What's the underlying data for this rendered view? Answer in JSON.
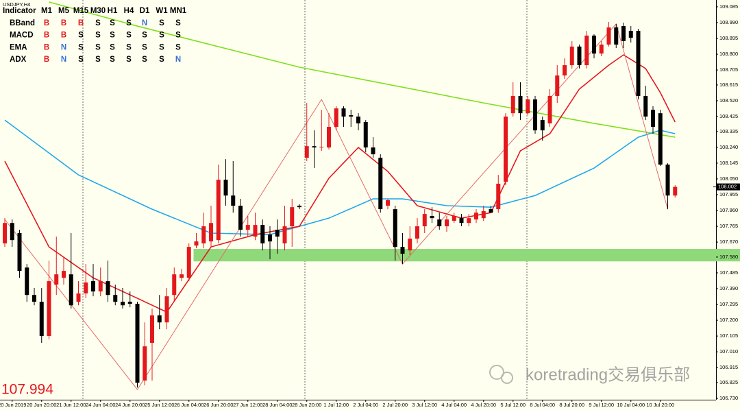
{
  "chart_data": {
    "type": "candlestick",
    "title": "USDJPY,H4",
    "categories": [
      null,
      "20 Jun 2019",
      null,
      null,
      null,
      "20 Jun 20:00",
      null,
      null,
      null,
      "21 Jun 12:00",
      null,
      null,
      null,
      "24 Jun 04:00",
      null,
      null,
      null,
      "24 Jun 20:00",
      null,
      null,
      null,
      "25 Jun 12:00",
      null,
      null,
      null,
      "26 Jun 04:00",
      null,
      null,
      null,
      "26 Jun 20:00",
      null,
      null,
      null,
      "27 Jun 12:00",
      null,
      null,
      null,
      "28 Jun 04:00",
      null,
      null,
      null,
      "28 Jun 20:00",
      null,
      null,
      null,
      "1 Jul 12:00",
      null,
      null,
      null,
      "2 Jul 04:00",
      null,
      null,
      null,
      "2 Jul 20:00",
      null,
      null,
      null,
      "3 Jul 12:00",
      null,
      null,
      null,
      "4 Jul 04:00",
      null,
      null,
      null,
      "4 Jul 20:00",
      null,
      null,
      null,
      "5 Jul 12:00",
      null,
      null,
      null,
      "8 Jul 04:00",
      null,
      null,
      null,
      "8 Jul 20:00",
      null,
      null,
      null,
      "9 Jul 12:00",
      null,
      null,
      null,
      "10 Jul 04:00",
      null,
      null,
      null,
      "10 Jul 20:00",
      null,
      null
    ],
    "open": [
      107.662,
      107.785,
      107.724,
      107.517,
      107.352,
      107.311,
      107.105,
      107.414,
      107.455,
      107.476,
      107.311,
      107.361,
      107.435,
      107.373,
      107.435,
      107.352,
      107.311,
      107.311,
      107.299,
      106.837,
      107.064,
      107.229,
      107.187,
      107.352,
      107.455,
      107.455,
      107.649,
      107.662,
      107.674,
      107.682,
      108.045,
      107.95,
      107.889,
      107.744,
      107.703,
      107.773,
      107.715,
      107.744,
      107.662,
      107.765,
      107.889,
      108.177,
      108.247,
      108.243,
      108.239,
      108.363,
      108.474,
      108.433,
      108.425,
      108.392,
      108.239,
      108.177,
      107.889,
      107.868,
      107.641,
      107.62,
      107.691,
      107.765,
      107.827,
      107.806,
      107.765,
      107.798,
      107.814,
      107.785,
      107.806,
      107.814,
      107.868,
      107.868,
      108.033,
      108.445,
      108.549,
      108.445,
      108.528,
      108.404,
      108.384,
      108.549,
      108.672,
      108.734,
      108.846,
      108.734,
      108.912,
      108.804,
      108.858,
      108.961,
      108.969,
      108.94,
      108.94,
      108.549,
      108.466,
      108.445,
      108.136,
      107.95
    ],
    "high": [
      107.814,
      107.806,
      107.744,
      107.538,
      107.394,
      107.394,
      107.559,
      107.703,
      107.579,
      107.724,
      107.435,
      107.538,
      107.538,
      107.517,
      107.559,
      107.414,
      107.394,
      107.373,
      107.311,
      107.187,
      107.27,
      107.352,
      107.394,
      107.517,
      107.509,
      107.662,
      107.724,
      107.847,
      107.889,
      108.136,
      108.169,
      108.157,
      107.93,
      107.827,
      107.847,
      107.806,
      107.765,
      107.806,
      107.889,
      107.93,
      107.897,
      108.507,
      108.342,
      108.466,
      108.445,
      108.487,
      108.487,
      108.466,
      108.445,
      108.404,
      108.301,
      108.198,
      107.93,
      107.889,
      107.724,
      107.765,
      107.814,
      107.868,
      107.88,
      107.847,
      107.827,
      107.847,
      107.839,
      107.839,
      107.868,
      107.889,
      107.889,
      108.074,
      108.445,
      108.631,
      108.631,
      108.549,
      108.549,
      108.425,
      108.59,
      108.734,
      108.775,
      108.879,
      108.858,
      108.94,
      108.92,
      108.879,
      108.994,
      108.982,
      108.99,
      108.969,
      108.953,
      108.61,
      108.487,
      108.466,
      108.144,
      108.012
    ],
    "low": [
      107.641,
      107.641,
      107.455,
      107.311,
      107.29,
      107.064,
      107.084,
      107.352,
      107.414,
      107.27,
      107.29,
      107.332,
      107.344,
      107.344,
      107.311,
      107.29,
      107.27,
      107.278,
      106.795,
      106.808,
      106.837,
      107.146,
      107.146,
      107.311,
      107.435,
      107.435,
      107.633,
      107.633,
      107.641,
      107.662,
      107.889,
      107.847,
      107.703,
      107.703,
      107.682,
      107.62,
      107.567,
      107.6,
      107.62,
      107.641,
      107.868,
      108.157,
      108.115,
      108.219,
      108.227,
      108.342,
      108.363,
      108.363,
      108.342,
      108.21,
      108.177,
      107.847,
      107.868,
      107.559,
      107.538,
      107.592,
      107.662,
      107.724,
      107.785,
      107.744,
      107.732,
      107.785,
      107.765,
      107.765,
      107.785,
      107.798,
      107.847,
      107.847,
      108.012,
      108.425,
      108.404,
      108.433,
      108.322,
      108.28,
      108.363,
      108.507,
      108.652,
      108.714,
      108.714,
      108.714,
      108.775,
      108.788,
      108.846,
      108.837,
      108.837,
      108.87,
      108.528,
      108.404,
      108.322,
      108.128,
      107.868,
      107.938
    ],
    "close": [
      107.785,
      107.682,
      107.497,
      107.352,
      107.311,
      107.105,
      107.435,
      107.476,
      107.497,
      107.29,
      107.361,
      107.427,
      107.373,
      107.435,
      107.352,
      107.311,
      107.29,
      107.299,
      106.824,
      107.043,
      107.229,
      107.187,
      107.344,
      107.476,
      107.476,
      107.641,
      107.674,
      107.765,
      107.785,
      108.045,
      107.95,
      107.889,
      107.744,
      107.773,
      107.773,
      107.662,
      107.674,
      107.703,
      107.765,
      107.88,
      107.88,
      108.247,
      108.239,
      108.243,
      108.363,
      108.474,
      108.425,
      108.425,
      108.384,
      108.239,
      108.198,
      107.868,
      107.922,
      107.641,
      107.6,
      107.691,
      107.765,
      107.839,
      107.814,
      107.765,
      107.806,
      107.827,
      107.785,
      107.814,
      107.847,
      107.856,
      107.847,
      108.021,
      108.425,
      108.549,
      108.445,
      108.528,
      108.342,
      108.342,
      108.549,
      108.672,
      108.734,
      108.846,
      108.734,
      108.912,
      108.804,
      108.858,
      108.961,
      108.858,
      108.879,
      108.899,
      108.549,
      108.425,
      108.363,
      108.136,
      107.95,
      108.002
    ],
    "up_color": "#e4181c",
    "down_color": "#000000",
    "overlays": [
      {
        "color": "#7ee01a",
        "x": [
          6,
          18,
          40,
          65,
          80,
          91
        ],
        "values": [
          109.114,
          108.969,
          108.722,
          108.507,
          108.384,
          108.301
        ]
      },
      {
        "color": "#1ea8ec",
        "x": [
          0,
          10,
          20,
          28,
          36,
          44,
          50,
          54,
          60,
          66,
          72,
          80,
          86,
          89,
          91
        ],
        "values": [
          108.404,
          108.074,
          107.868,
          107.724,
          107.715,
          107.814,
          107.93,
          107.93,
          107.889,
          107.88,
          107.95,
          108.115,
          108.301,
          108.342,
          108.322
        ]
      },
      {
        "color": "#e4181c",
        "x": [
          0,
          6,
          12,
          18,
          22,
          28,
          34,
          40,
          44,
          48,
          52,
          56,
          62,
          66,
          70,
          74,
          78,
          82,
          84,
          87,
          89,
          91
        ],
        "values": [
          108.157,
          107.641,
          107.455,
          107.332,
          107.249,
          107.641,
          107.715,
          107.765,
          108.054,
          108.239,
          108.095,
          107.889,
          107.814,
          107.847,
          108.219,
          108.322,
          108.59,
          108.734,
          108.796,
          108.714,
          108.569,
          108.392
        ]
      },
      {
        "color": "#e46a6a",
        "x": [
          0,
          18,
          43,
          54,
          83,
          90
        ],
        "values": [
          107.806,
          106.783,
          108.528,
          107.538,
          108.982,
          107.868
        ],
        "thin": true
      }
    ],
    "zone": {
      "start": 26,
      "low": 107.554,
      "high": 107.629,
      "color": "#8fd97a"
    },
    "ylim": [
      106.722,
      109.126
    ],
    "yticks": [
      109.085,
      {
        "value": 108.99,
        "label": "108.990"
      },
      108.895,
      {
        "value": 108.8,
        "label": "108.800"
      },
      108.705,
      108.615,
      {
        "value": 108.52,
        "label": "108.520"
      },
      108.425,
      108.335,
      {
        "value": 108.24,
        "label": "108.240"
      },
      108.145,
      {
        "value": 108.05,
        "label": "108.050"
      },
      107.955,
      {
        "value": 107.86,
        "label": "107.860"
      },
      107.765,
      {
        "value": 107.67,
        "label": "107.670"
      },
      {
        "value": 107.58,
        "label": "107.580"
      },
      107.485,
      {
        "value": 107.39,
        "label": "107.390"
      },
      107.295,
      {
        "value": 107.2,
        "label": "107.200"
      },
      107.105,
      {
        "value": 107.01,
        "label": "107.010"
      },
      106.915,
      106.825,
      {
        "value": 106.73,
        "label": "106.730"
      }
    ],
    "current_price": 108.002,
    "indicator_value": 107.994
  },
  "signal_table": {
    "header": [
      "Indicator",
      "M1",
      "M5",
      "M15",
      "M30",
      "H1",
      "H4",
      "D1",
      "W1",
      "MN1"
    ],
    "rows": [
      [
        "BBand",
        "B",
        "B",
        "B",
        "S",
        "S",
        "S",
        "N",
        "S",
        "S"
      ],
      [
        "MACD",
        "B",
        "B",
        "S",
        "S",
        "S",
        "S",
        "S",
        "S",
        "S"
      ],
      [
        "EMA",
        "B",
        "N",
        "S",
        "S",
        "S",
        "S",
        "S",
        "S",
        "S"
      ],
      [
        "ADX",
        "B",
        "N",
        "S",
        "S",
        "S",
        "S",
        "S",
        "S",
        "N"
      ]
    ],
    "signal_colors": {
      "B": "#e4181c",
      "N": "#3a6fd8",
      "S": "#000000"
    }
  },
  "watermark": "koretrading交易俱乐部"
}
